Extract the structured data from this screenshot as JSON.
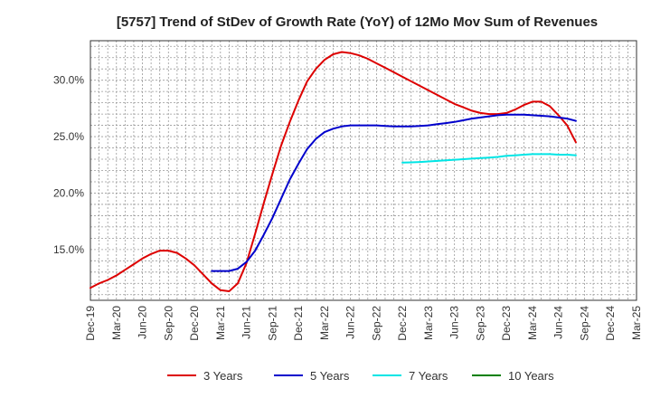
{
  "chart_data": {
    "type": "line",
    "title": "[5757]  Trend of StDev of Growth Rate (YoY) of 12Mo Mov Sum of Revenues",
    "xlabel": "",
    "ylabel": "",
    "ylim": [
      10.5,
      33.5
    ],
    "y_ticks": [
      15.0,
      20.0,
      25.0,
      30.0
    ],
    "y_tick_labels": [
      "15.0%",
      "20.0%",
      "25.0%",
      "30.0%"
    ],
    "x_tick_labels": [
      "Dec-19",
      "Mar-20",
      "Jun-20",
      "Sep-20",
      "Dec-20",
      "Mar-21",
      "Jun-21",
      "Sep-21",
      "Dec-21",
      "Mar-22",
      "Jun-22",
      "Sep-22",
      "Dec-22",
      "Mar-23",
      "Jun-23",
      "Sep-23",
      "Dec-23",
      "Mar-24",
      "Jun-24",
      "Sep-24",
      "Dec-24",
      "Mar-25"
    ],
    "grid": true,
    "legend_position": "bottom",
    "series": [
      {
        "name": "3 Years",
        "color": "#dd0000",
        "points": [
          [
            0,
            11.6
          ],
          [
            1,
            12.0
          ],
          [
            2,
            12.3
          ],
          [
            3,
            12.7
          ],
          [
            4,
            13.2
          ],
          [
            5,
            13.7
          ],
          [
            6,
            14.2
          ],
          [
            7,
            14.6
          ],
          [
            8,
            14.9
          ],
          [
            9,
            14.9
          ],
          [
            10,
            14.7
          ],
          [
            11,
            14.2
          ],
          [
            12,
            13.6
          ],
          [
            13,
            12.8
          ],
          [
            14,
            12.0
          ],
          [
            15,
            11.4
          ],
          [
            16,
            11.3
          ],
          [
            17,
            12.0
          ],
          [
            18,
            13.8
          ],
          [
            19,
            16.4
          ],
          [
            20,
            19.1
          ],
          [
            21,
            21.7
          ],
          [
            22,
            24.2
          ],
          [
            23,
            26.3
          ],
          [
            24,
            28.2
          ],
          [
            25,
            29.9
          ],
          [
            26,
            31.0
          ],
          [
            27,
            31.8
          ],
          [
            28,
            32.3
          ],
          [
            29,
            32.5
          ],
          [
            30,
            32.4
          ],
          [
            31,
            32.2
          ],
          [
            32,
            31.9
          ],
          [
            33,
            31.5
          ],
          [
            34,
            31.1
          ],
          [
            35,
            30.7
          ],
          [
            36,
            30.3
          ],
          [
            37,
            29.9
          ],
          [
            38,
            29.5
          ],
          [
            39,
            29.1
          ],
          [
            40,
            28.7
          ],
          [
            41,
            28.3
          ],
          [
            42,
            27.9
          ],
          [
            43,
            27.6
          ],
          [
            44,
            27.3
          ],
          [
            45,
            27.1
          ],
          [
            46,
            27.0
          ],
          [
            47,
            27.0
          ],
          [
            48,
            27.1
          ],
          [
            49,
            27.4
          ],
          [
            50,
            27.8
          ],
          [
            51,
            28.1
          ],
          [
            52,
            28.1
          ],
          [
            53,
            27.7
          ],
          [
            54,
            26.9
          ],
          [
            55,
            26.0
          ],
          [
            56,
            24.5
          ]
        ]
      },
      {
        "name": "5 Years",
        "color": "#0000cc",
        "points": [
          [
            14,
            13.1
          ],
          [
            15,
            13.1
          ],
          [
            16,
            13.1
          ],
          [
            17,
            13.3
          ],
          [
            18,
            13.9
          ],
          [
            19,
            14.9
          ],
          [
            20,
            16.3
          ],
          [
            21,
            17.8
          ],
          [
            22,
            19.5
          ],
          [
            23,
            21.2
          ],
          [
            24,
            22.6
          ],
          [
            25,
            23.9
          ],
          [
            26,
            24.8
          ],
          [
            27,
            25.4
          ],
          [
            28,
            25.7
          ],
          [
            29,
            25.9
          ],
          [
            30,
            26.0
          ],
          [
            31,
            26.0
          ],
          [
            32,
            26.0
          ],
          [
            33,
            26.0
          ],
          [
            34,
            25.95
          ],
          [
            35,
            25.9
          ],
          [
            36,
            25.9
          ],
          [
            37,
            25.9
          ],
          [
            38,
            25.95
          ],
          [
            39,
            26.0
          ],
          [
            40,
            26.1
          ],
          [
            41,
            26.2
          ],
          [
            42,
            26.3
          ],
          [
            43,
            26.45
          ],
          [
            44,
            26.6
          ],
          [
            45,
            26.7
          ],
          [
            46,
            26.8
          ],
          [
            47,
            26.9
          ],
          [
            48,
            26.95
          ],
          [
            49,
            26.95
          ],
          [
            50,
            26.95
          ],
          [
            51,
            26.9
          ],
          [
            52,
            26.85
          ],
          [
            53,
            26.8
          ],
          [
            54,
            26.7
          ],
          [
            55,
            26.6
          ],
          [
            56,
            26.4
          ]
        ]
      },
      {
        "name": "7 Years",
        "color": "#00e5e5",
        "points": [
          [
            36,
            22.7
          ],
          [
            37,
            22.72
          ],
          [
            38,
            22.75
          ],
          [
            39,
            22.8
          ],
          [
            40,
            22.85
          ],
          [
            41,
            22.9
          ],
          [
            42,
            22.95
          ],
          [
            43,
            23.0
          ],
          [
            44,
            23.05
          ],
          [
            45,
            23.1
          ],
          [
            46,
            23.15
          ],
          [
            47,
            23.2
          ],
          [
            48,
            23.3
          ],
          [
            49,
            23.35
          ],
          [
            50,
            23.4
          ],
          [
            51,
            23.45
          ],
          [
            52,
            23.45
          ],
          [
            53,
            23.45
          ],
          [
            54,
            23.4
          ],
          [
            55,
            23.4
          ],
          [
            56,
            23.35
          ]
        ]
      },
      {
        "name": "10 Years",
        "color": "#008000",
        "points": []
      }
    ]
  }
}
